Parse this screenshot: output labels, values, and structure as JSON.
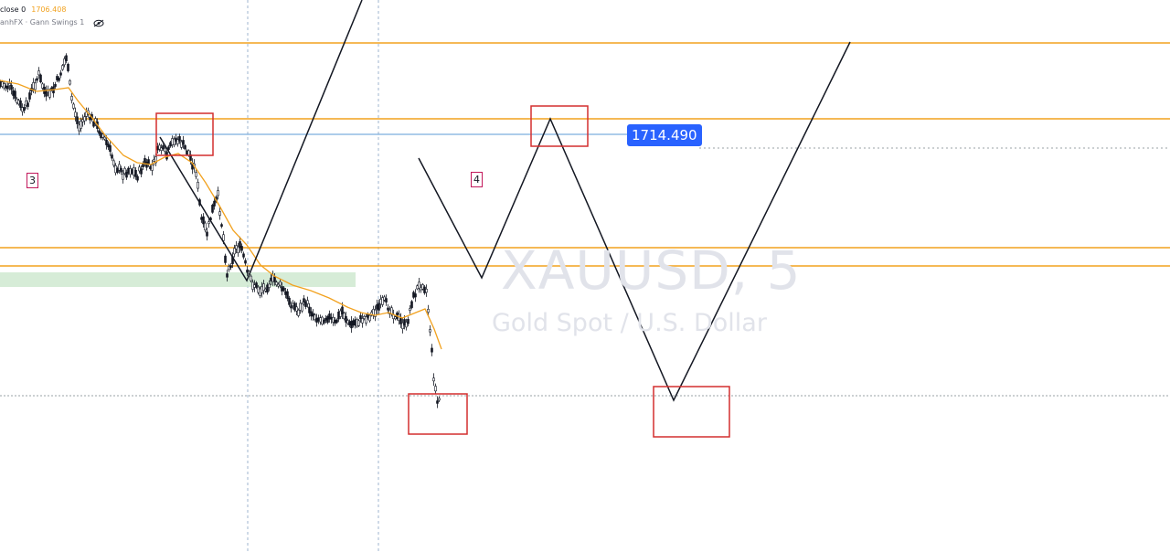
{
  "legend": {
    "close_label": "close 0",
    "close_value": "1706.408",
    "indicator": "anhFX · Gann Swings 1",
    "eye_icon": "eye-crossed-icon"
  },
  "watermark": {
    "symbol": "XAUUSD, 5",
    "description": "Gold Spot / U.S. Dollar"
  },
  "wave_labels": [
    "3",
    "4"
  ],
  "price_tag": "1714.490",
  "colors": {
    "horizontal_line": "#f2a21f",
    "price_line": "#5b9bd5",
    "projection": "#131722",
    "highlight_box": "#d32f2f",
    "support_zone": "#c8e6c9",
    "moving_average": "#f2a21f",
    "price_tag_bg": "#2962ff"
  }
}
